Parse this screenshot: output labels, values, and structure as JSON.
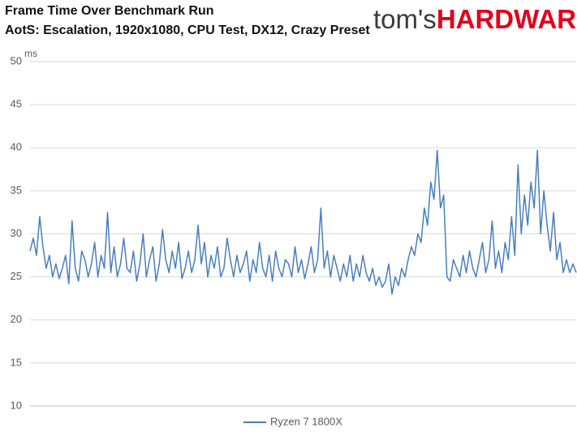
{
  "logo": {
    "prefix": "tom's",
    "suffix": "HARDWARE"
  },
  "chart_data": {
    "type": "line",
    "title": "Frame Time Over Benchmark Run",
    "subtitle": "AotS: Escalation, 1920x1080, CPU Test, DX12, Crazy Preset",
    "y_label": "ms",
    "ylim": [
      10,
      50
    ],
    "yticks": [
      10,
      15,
      20,
      25,
      30,
      35,
      40,
      45,
      50
    ],
    "grid": true,
    "legend": "bottom",
    "series": [
      {
        "name": "Ryzen 7 1800X",
        "color": "#4a7ebb",
        "values": [
          28,
          29.5,
          27.5,
          32,
          28.5,
          26,
          27.5,
          25,
          26.5,
          24.8,
          26,
          27.5,
          24.2,
          31.5,
          26,
          24.5,
          28,
          27,
          25,
          26.5,
          29,
          25,
          27.5,
          26,
          32.5,
          25.5,
          28.5,
          25,
          26.5,
          29.5,
          26,
          25.5,
          28,
          24.5,
          26.5,
          30,
          25,
          27,
          28.5,
          24.5,
          26.5,
          30.5,
          27,
          25.5,
          28,
          26,
          29,
          24.8,
          26,
          28,
          25.5,
          27,
          31,
          26.5,
          29,
          25,
          27.5,
          26,
          28.5,
          25,
          26,
          29.5,
          27,
          25,
          27.5,
          25.5,
          26.5,
          28,
          24.5,
          27,
          25.5,
          29,
          26,
          25,
          27.5,
          24.5,
          28,
          26,
          25,
          27,
          26.5,
          25,
          28.5,
          25.5,
          27,
          24.8,
          26.5,
          28.5,
          25.5,
          27,
          33,
          26,
          28,
          25,
          27.5,
          26,
          24.5,
          26.5,
          25,
          27.5,
          24.5,
          26.5,
          25,
          27.5,
          25.5,
          24.5,
          26,
          24,
          25,
          23.8,
          24.5,
          26.5,
          23,
          25,
          24,
          26,
          25,
          27,
          28.5,
          27.5,
          30,
          29,
          33,
          31,
          36,
          34,
          39.7,
          33,
          34.5,
          25,
          24.5,
          27,
          26,
          25,
          27.5,
          25.5,
          28,
          26,
          25,
          27,
          29,
          25.5,
          27,
          31.5,
          26,
          28,
          25.5,
          29,
          27,
          32,
          27.5,
          38,
          30,
          34.5,
          31,
          36,
          33,
          39.7,
          30,
          35,
          31,
          28,
          32.5,
          27,
          29,
          25.5,
          27,
          25.5,
          26.5,
          25.5
        ]
      }
    ]
  }
}
